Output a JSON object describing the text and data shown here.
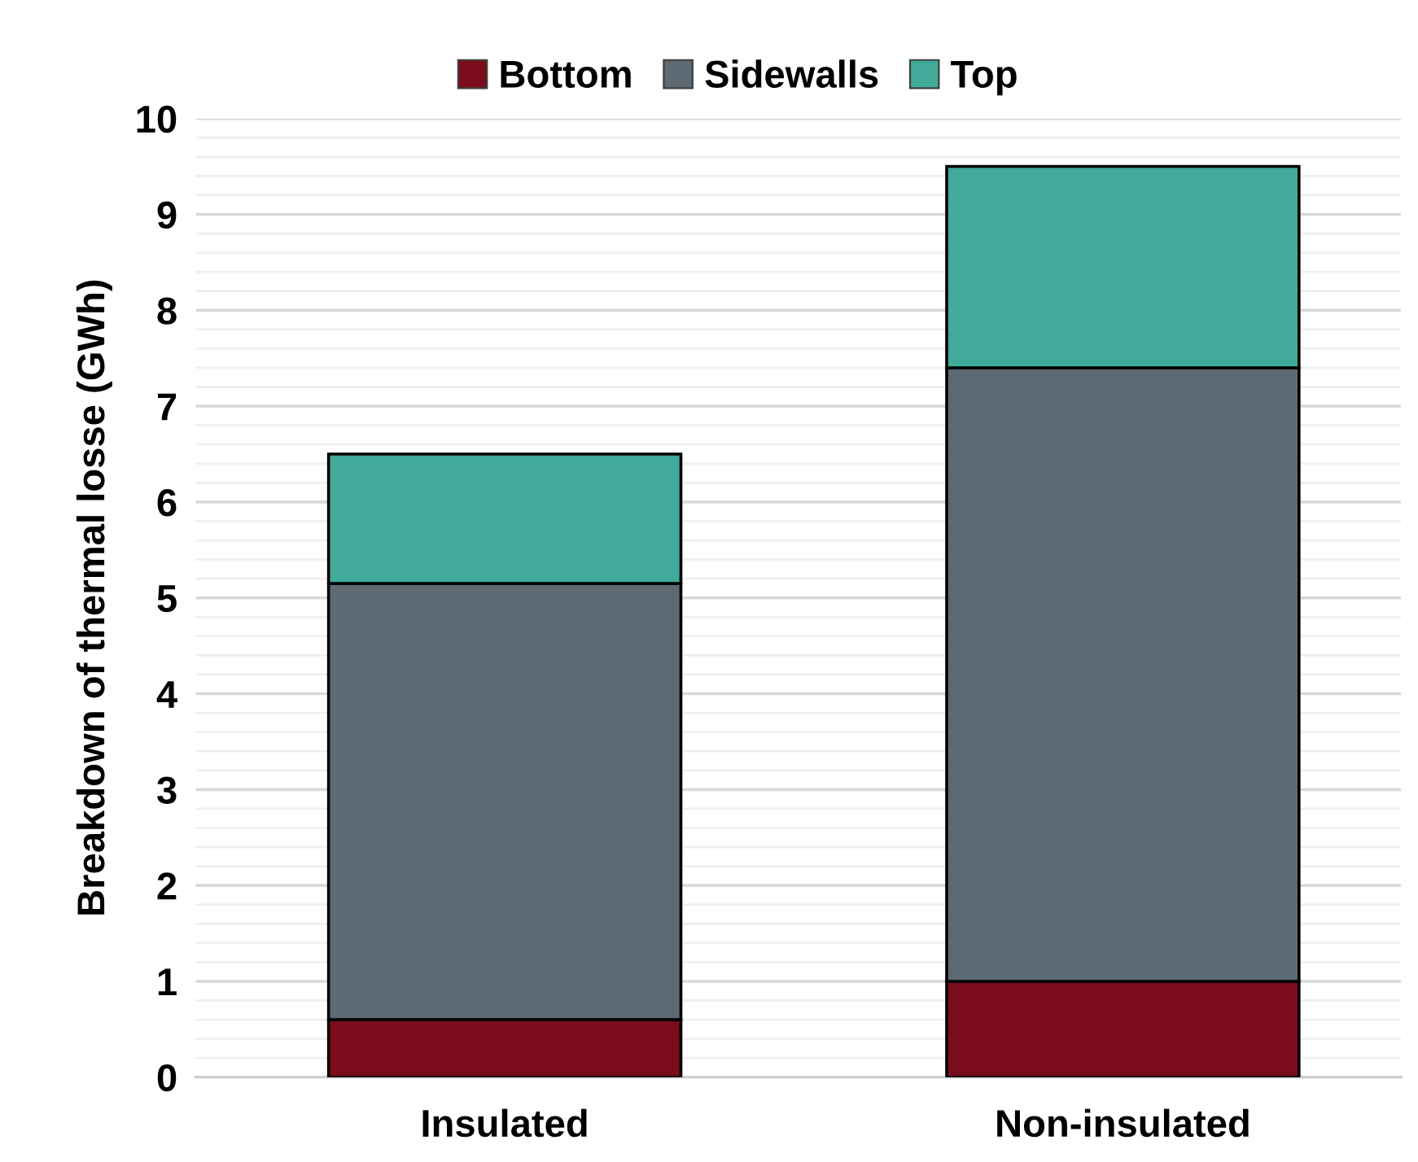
{
  "chart_data": {
    "type": "bar",
    "stacked": true,
    "ylabel": "Breakdown of thermal losse (GWh)",
    "categories": [
      "Insulated",
      "Non-insulated"
    ],
    "series": [
      {
        "name": "Bottom",
        "color": "#7b0c1c",
        "values": [
          0.6,
          1.0
        ]
      },
      {
        "name": "Sidewalls",
        "color": "#5d6a73",
        "values": [
          4.55,
          6.4
        ]
      },
      {
        "name": "Top",
        "color": "#41aa9a",
        "values": [
          1.35,
          2.1
        ]
      }
    ],
    "ylim": [
      0,
      10
    ],
    "yticks": [
      0,
      1,
      2,
      3,
      4,
      5,
      6,
      7,
      8,
      9,
      10
    ],
    "grid": "y",
    "legend": "top"
  }
}
